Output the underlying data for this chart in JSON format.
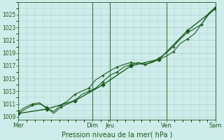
{
  "bg_color": "#ceecea",
  "grid_color": "#a8cece",
  "line_color": "#1a5c1a",
  "xlabel": "Pression niveau de la mer( hPa )",
  "ylim": [
    1008.5,
    1027.0
  ],
  "yticks": [
    1009,
    1011,
    1013,
    1015,
    1017,
    1019,
    1021,
    1023,
    1025
  ],
  "xlim": [
    0,
    168
  ],
  "vline_positions": [
    0,
    63,
    78,
    126,
    168
  ],
  "xtick_positions": [
    0,
    63,
    78,
    126,
    168
  ],
  "xtick_labels": [
    "Mer",
    "Dim",
    "Jeu",
    "Ven",
    "Sam"
  ],
  "series1_x": [
    0,
    6,
    12,
    18,
    24,
    30,
    36,
    42,
    48,
    54,
    60,
    66,
    72,
    78,
    84,
    90,
    96,
    102,
    108,
    114,
    120,
    126,
    132,
    138,
    144,
    150,
    156,
    162,
    168
  ],
  "series1_y": [
    1009.5,
    1010.2,
    1010.8,
    1011.0,
    1010.5,
    1009.5,
    1010.5,
    1011.0,
    1011.5,
    1012.5,
    1013.0,
    1013.5,
    1014.5,
    1015.5,
    1016.0,
    1016.8,
    1017.2,
    1017.5,
    1017.2,
    1017.5,
    1018.0,
    1018.5,
    1019.2,
    1020.5,
    1021.2,
    1022.0,
    1023.5,
    1025.0,
    1026.0
  ],
  "series2_x": [
    0,
    6,
    12,
    18,
    24,
    30,
    36,
    42,
    48,
    54,
    60,
    66,
    72,
    78,
    84,
    90,
    96,
    102,
    108,
    114,
    120,
    126,
    132,
    138,
    144,
    150,
    156,
    162,
    168
  ],
  "series2_y": [
    1009.8,
    1010.5,
    1011.0,
    1011.2,
    1010.3,
    1009.8,
    1010.8,
    1011.5,
    1012.5,
    1013.0,
    1013.5,
    1014.8,
    1015.5,
    1016.2,
    1016.8,
    1017.2,
    1017.5,
    1017.3,
    1017.2,
    1017.6,
    1018.2,
    1019.0,
    1020.0,
    1021.2,
    1022.2,
    1022.8,
    1023.5,
    1025.2,
    1026.2
  ],
  "series3_x": [
    0,
    24,
    48,
    72,
    96,
    120,
    144,
    168
  ],
  "series3_y": [
    1009.5,
    1010.2,
    1011.5,
    1014.0,
    1017.0,
    1018.0,
    1022.5,
    1026.0
  ],
  "markers1_x": [
    0,
    12,
    24,
    36,
    48,
    60,
    72,
    84,
    96,
    108,
    120,
    132,
    144,
    156,
    168
  ],
  "markers1_y": [
    1009.5,
    1010.8,
    1010.5,
    1010.5,
    1011.5,
    1013.0,
    1014.5,
    1016.0,
    1017.2,
    1017.2,
    1018.0,
    1019.2,
    1021.2,
    1023.5,
    1026.0
  ],
  "markers2_x": [
    0,
    12,
    24,
    36,
    48,
    60,
    72,
    84,
    96,
    108,
    120,
    132,
    144,
    156,
    168
  ],
  "markers2_y": [
    1009.8,
    1011.0,
    1010.3,
    1010.8,
    1012.5,
    1013.5,
    1015.5,
    1016.8,
    1017.5,
    1017.2,
    1018.2,
    1020.0,
    1022.2,
    1023.5,
    1026.2
  ],
  "markers3_x": [
    0,
    24,
    48,
    72,
    96,
    120,
    144,
    168
  ],
  "markers3_y": [
    1009.5,
    1010.2,
    1011.5,
    1014.0,
    1017.0,
    1018.0,
    1022.5,
    1026.0
  ]
}
